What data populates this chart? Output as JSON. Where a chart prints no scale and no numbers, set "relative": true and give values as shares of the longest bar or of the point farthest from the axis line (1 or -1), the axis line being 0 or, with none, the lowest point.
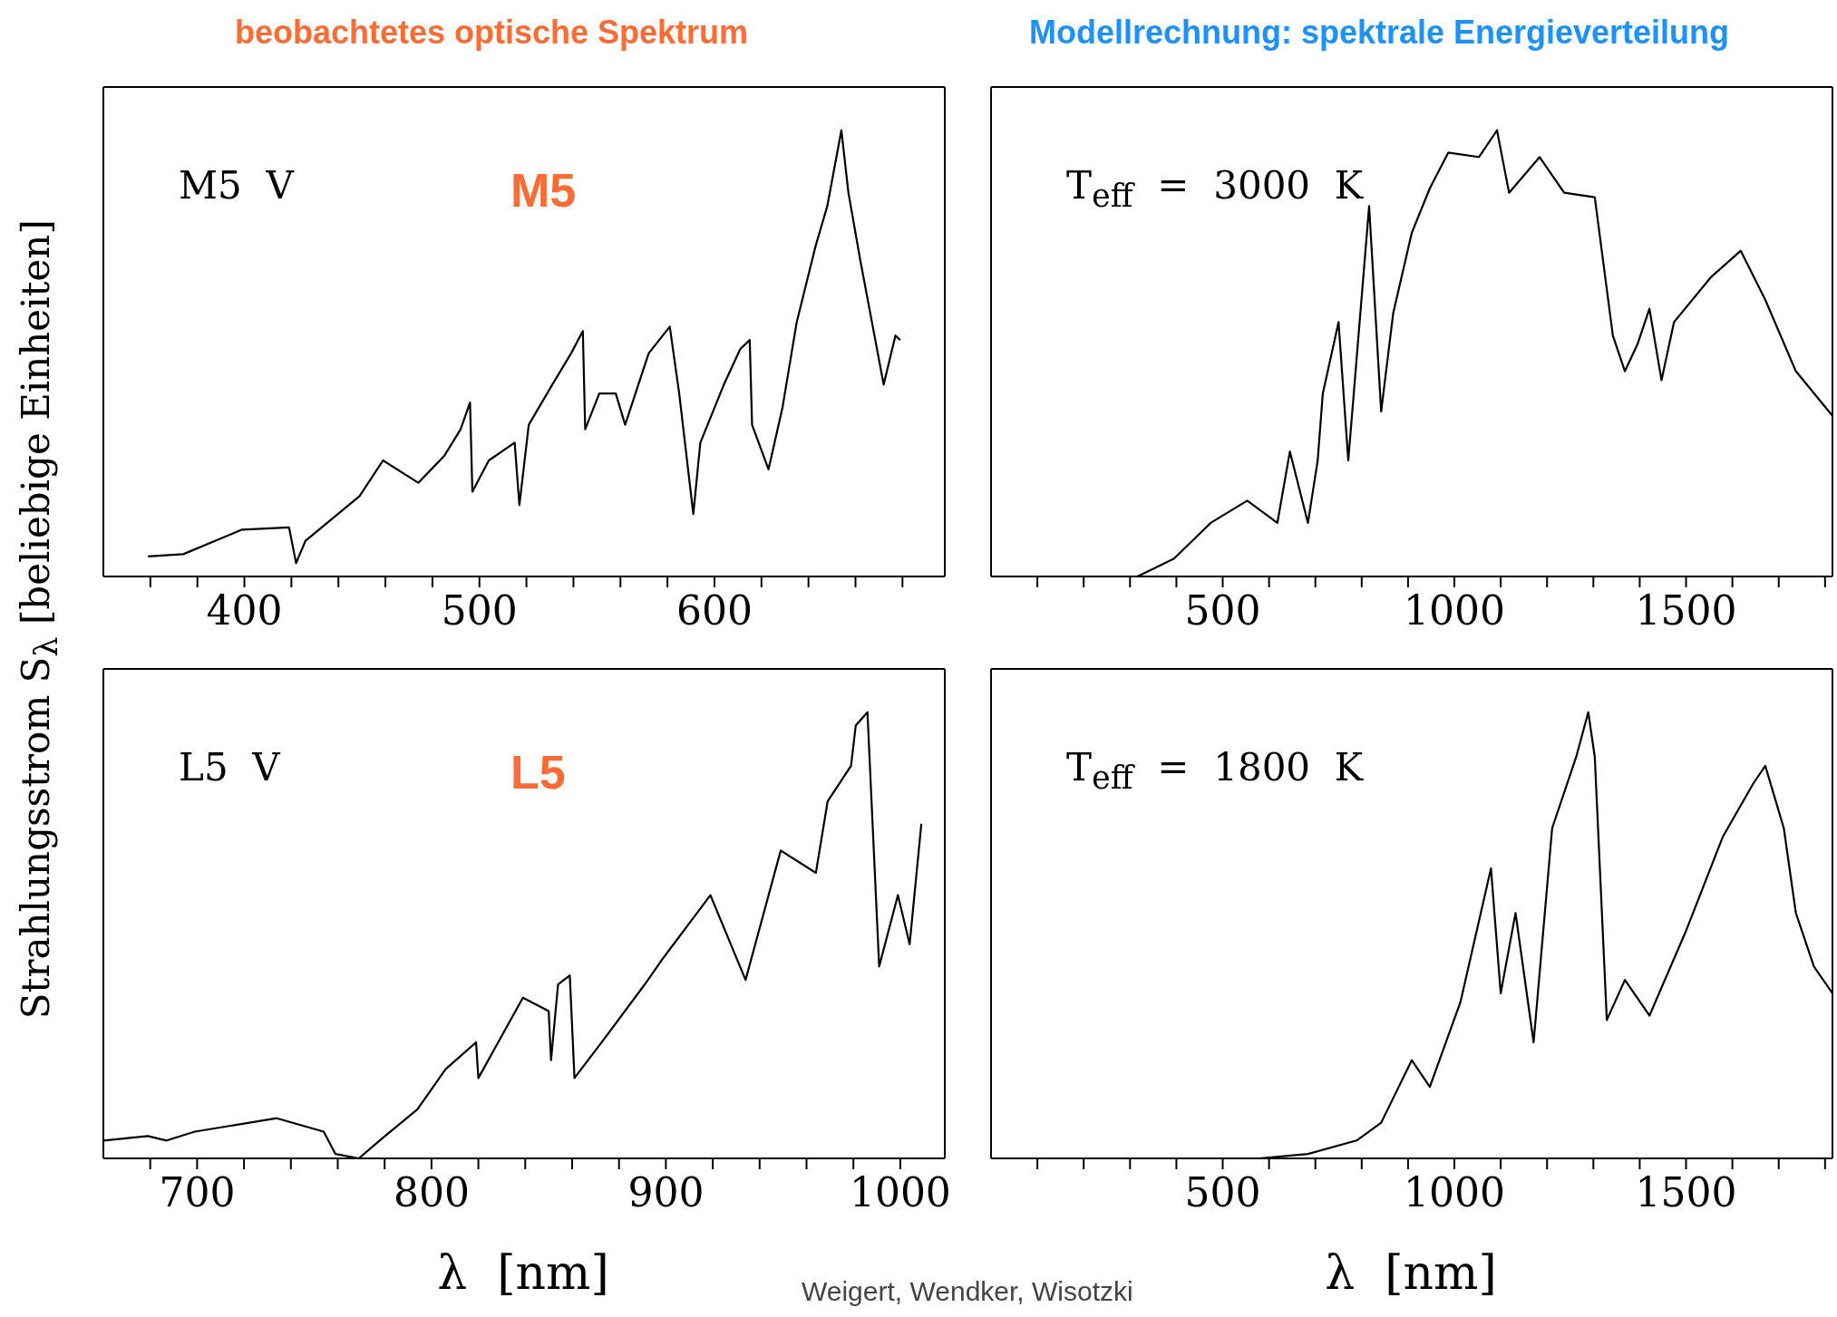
{
  "chart_data": [
    {
      "type": "line",
      "title": "beobachtetes optische Spektrum",
      "ylabel": "Strahlungsstrom S$_{λ}$ [beliebige Einheiten]",
      "annotations": [
        "M5  V",
        "M5"
      ],
      "relative": true,
      "tick_labels": "x",
      "marker": "none",
      "line_style": "solid",
      "xlim": [
        340,
        698
      ],
      "xticks": [
        {
          "value": 360,
          "label": null
        },
        {
          "value": 380,
          "label": null
        },
        400,
        {
          "value": 420,
          "label": null
        },
        {
          "value": 440,
          "label": null
        },
        {
          "value": 460,
          "label": null
        },
        {
          "value": 480,
          "label": null
        },
        500,
        {
          "value": 520,
          "label": null
        },
        {
          "value": 540,
          "label": null
        },
        {
          "value": 560,
          "label": null
        },
        {
          "value": 580,
          "label": null
        },
        600,
        {
          "value": 620,
          "label": null
        },
        {
          "value": 640,
          "label": null
        },
        {
          "value": 660,
          "label": null
        },
        {
          "value": 680,
          "label": null
        }
      ],
      "x": [
        359,
        374,
        399,
        419,
        422,
        426,
        449,
        459,
        474,
        485,
        492,
        496,
        497,
        504,
        515,
        517,
        521,
        531,
        539,
        544,
        545,
        551,
        558,
        562,
        572,
        581,
        585,
        591,
        594,
        604,
        611,
        615,
        616,
        623,
        629,
        635,
        643,
        648,
        654,
        657,
        662,
        667,
        672,
        677,
        679
      ],
      "series": [
        {
          "color": "#000000",
          "values": [
            0.045,
            0.05,
            0.105,
            0.11,
            0.03,
            0.08,
            0.18,
            0.26,
            0.21,
            0.27,
            0.33,
            0.39,
            0.19,
            0.26,
            0.3,
            0.16,
            0.34,
            0.43,
            0.5,
            0.55,
            0.33,
            0.41,
            0.41,
            0.34,
            0.5,
            0.56,
            0.41,
            0.14,
            0.3,
            0.43,
            0.51,
            0.53,
            0.34,
            0.24,
            0.38,
            0.57,
            0.74,
            0.83,
            1,
            0.86,
            0.71,
            0.57,
            0.43,
            0.54,
            0.53
          ]
        }
      ]
    },
    {
      "type": "line",
      "title": "Modellrechnung: spektrale Energieverteilung",
      "annotations": [
        "T$_{eff}$  =  3000  K"
      ],
      "relative": true,
      "tick_labels": "x",
      "marker": "none",
      "line_style": "solid",
      "xlim": [
        0,
        1816
      ],
      "xticks": [
        {
          "value": 100,
          "label": null
        },
        {
          "value": 200,
          "label": null
        },
        {
          "value": 300,
          "label": null
        },
        {
          "value": 400,
          "label": null
        },
        500,
        {
          "value": 600,
          "label": null
        },
        {
          "value": 700,
          "label": null
        },
        {
          "value": 800,
          "label": null
        },
        {
          "value": 900,
          "label": null
        },
        1000,
        {
          "value": 1100,
          "label": null
        },
        {
          "value": 1200,
          "label": null
        },
        {
          "value": 1300,
          "label": null
        },
        {
          "value": 1400,
          "label": null
        },
        1500,
        {
          "value": 1600,
          "label": null
        },
        {
          "value": 1700,
          "label": null
        },
        {
          "value": 1800,
          "label": null
        }
      ],
      "x": [
        316,
        395,
        474,
        553,
        618,
        645,
        684,
        705,
        716,
        750,
        771,
        816,
        842,
        868,
        908,
        947,
        987,
        1053,
        1092,
        1118,
        1184,
        1237,
        1303,
        1342,
        1368,
        1395,
        1421,
        1447,
        1474,
        1553,
        1618,
        1671,
        1737,
        1816
      ],
      "series": [
        {
          "color": "#000000",
          "values": [
            0,
            0.04,
            0.12,
            0.17,
            0.12,
            0.28,
            0.12,
            0.26,
            0.41,
            0.57,
            0.26,
            0.83,
            0.37,
            0.59,
            0.77,
            0.87,
            0.95,
            0.94,
            1,
            0.86,
            0.94,
            0.86,
            0.85,
            0.54,
            0.46,
            0.52,
            0.6,
            0.44,
            0.57,
            0.67,
            0.73,
            0.62,
            0.46,
            0.36
          ]
        }
      ]
    },
    {
      "type": "line",
      "xlabel": "λ  [nm]",
      "annotations": [
        "L5  V",
        "L5"
      ],
      "relative": true,
      "tick_labels": "x",
      "marker": "none",
      "line_style": "solid",
      "xlim": [
        660,
        1019
      ],
      "xticks": [
        {
          "value": 680,
          "label": null
        },
        700,
        {
          "value": 720,
          "label": null
        },
        {
          "value": 740,
          "label": null
        },
        {
          "value": 760,
          "label": null
        },
        {
          "value": 780,
          "label": null
        },
        800,
        {
          "value": 820,
          "label": null
        },
        {
          "value": 840,
          "label": null
        },
        {
          "value": 860,
          "label": null
        },
        {
          "value": 880,
          "label": null
        },
        900,
        {
          "value": 920,
          "label": null
        },
        {
          "value": 940,
          "label": null
        },
        {
          "value": 960,
          "label": null
        },
        {
          "value": 980,
          "label": null
        },
        1000
      ],
      "x": [
        660,
        679,
        687,
        699,
        734,
        754,
        759,
        769,
        779,
        794,
        806,
        819,
        820,
        839,
        850,
        851,
        854,
        859,
        861,
        874,
        891,
        899,
        919,
        934,
        949,
        964,
        969,
        979,
        981,
        986,
        991,
        999,
        1004,
        1009
      ],
      "series": [
        {
          "color": "#000000",
          "values": [
            0.04,
            0.05,
            0.04,
            0.06,
            0.09,
            0.06,
            0.01,
            0,
            0.045,
            0.11,
            0.2,
            0.26,
            0.18,
            0.36,
            0.33,
            0.22,
            0.39,
            0.41,
            0.18,
            0.27,
            0.39,
            0.45,
            0.59,
            0.4,
            0.69,
            0.64,
            0.8,
            0.88,
            0.97,
            1,
            0.43,
            0.59,
            0.48,
            0.75
          ]
        }
      ]
    },
    {
      "type": "line",
      "xlabel": "λ  [nm]",
      "annotations": [
        "T$_{eff}$  =  1800  K",
        "Weigert, Wendker, Wisotzki"
      ],
      "relative": true,
      "tick_labels": "x",
      "marker": "none",
      "line_style": "solid",
      "xlim": [
        0,
        1816
      ],
      "xticks": [
        {
          "value": 100,
          "label": null
        },
        {
          "value": 200,
          "label": null
        },
        {
          "value": 300,
          "label": null
        },
        {
          "value": 400,
          "label": null
        },
        500,
        {
          "value": 600,
          "label": null
        },
        {
          "value": 700,
          "label": null
        },
        {
          "value": 800,
          "label": null
        },
        {
          "value": 900,
          "label": null
        },
        1000,
        {
          "value": 1100,
          "label": null
        },
        {
          "value": 1200,
          "label": null
        },
        {
          "value": 1300,
          "label": null
        },
        {
          "value": 1400,
          "label": null
        },
        1500,
        {
          "value": 1600,
          "label": null
        },
        {
          "value": 1700,
          "label": null
        },
        {
          "value": 1800,
          "label": null
        }
      ],
      "x": [
        579,
        684,
        789,
        842,
        908,
        947,
        1013,
        1079,
        1100,
        1132,
        1171,
        1211,
        1263,
        1289,
        1303,
        1329,
        1368,
        1421,
        1500,
        1579,
        1645,
        1671,
        1711,
        1737,
        1776,
        1816
      ],
      "series": [
        {
          "color": "#000000",
          "values": [
            0,
            0.01,
            0.04,
            0.08,
            0.22,
            0.16,
            0.35,
            0.65,
            0.37,
            0.55,
            0.26,
            0.74,
            0.9,
            1,
            0.9,
            0.31,
            0.4,
            0.32,
            0.51,
            0.72,
            0.84,
            0.88,
            0.74,
            0.55,
            0.43,
            0.37
          ]
        }
      ]
    }
  ]
}
